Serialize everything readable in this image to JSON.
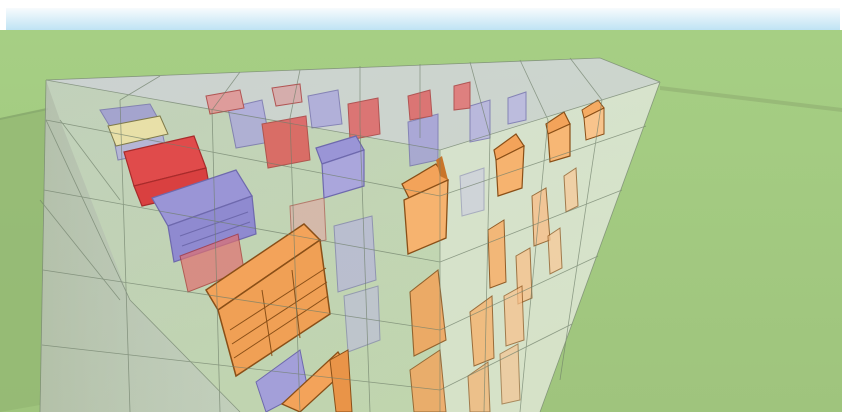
{
  "app": {
    "name": "",
    "view": "3d-model-viewport"
  },
  "viewport": {
    "sky_colors": [
      "#f7fbfd",
      "#bfe3f4"
    ],
    "ground_color": "#a5c983",
    "ground_dark": "#8fb86e",
    "glass_color": "#c9c3e3",
    "glass_stroke": "#6f7f6a",
    "grid": true,
    "cube": {
      "rows": 5,
      "cols": 6,
      "layers": 4
    },
    "building_colors": {
      "orange": "#f3a35a",
      "orange_dark": "#c9752a",
      "purple": "#9a95d6",
      "purple_dark": "#6e69ad",
      "red": "#e04b4b",
      "red_dark": "#a82b2b",
      "cream": "#e8e0a8"
    },
    "icon": "3d-scene-icon"
  }
}
